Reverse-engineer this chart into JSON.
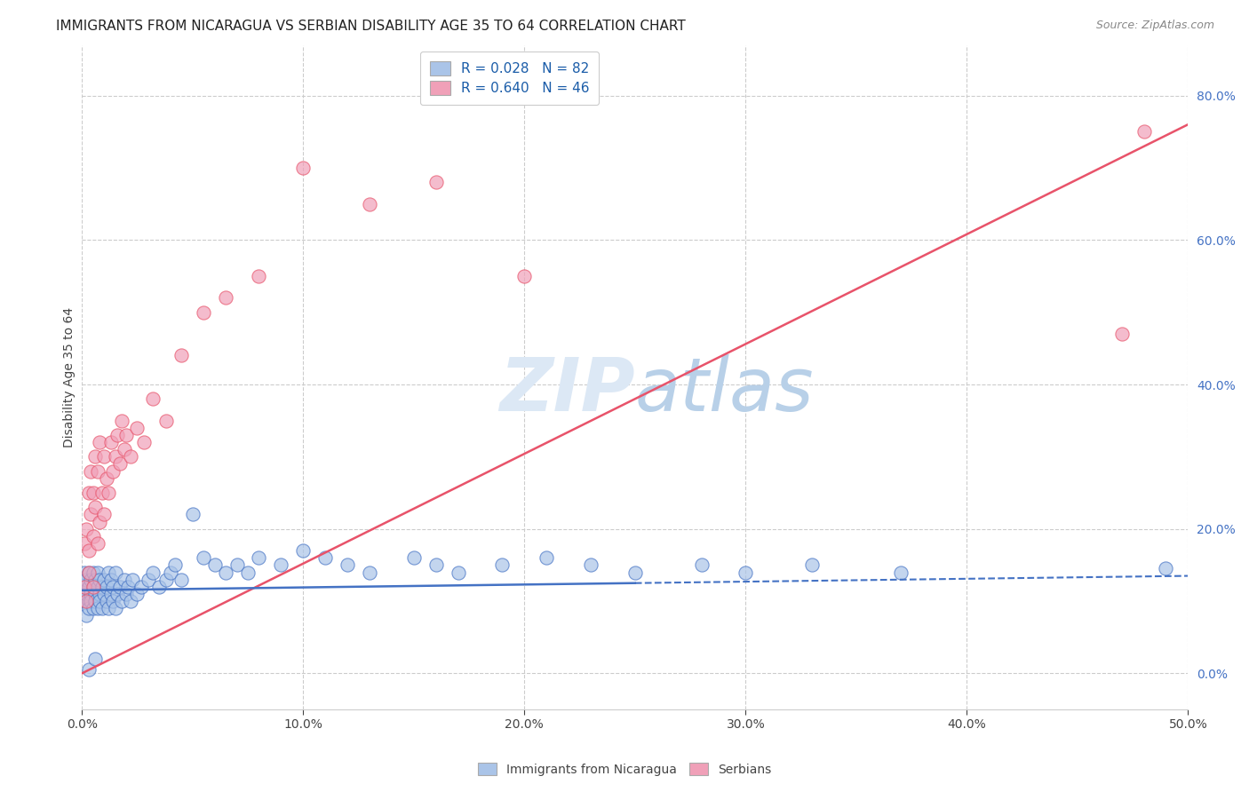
{
  "title": "IMMIGRANTS FROM NICARAGUA VS SERBIAN DISABILITY AGE 35 TO 64 CORRELATION CHART",
  "source": "Source: ZipAtlas.com",
  "ylabel": "Disability Age 35 to 64",
  "xlim": [
    0.0,
    0.5
  ],
  "ylim": [
    -0.05,
    0.87
  ],
  "color_nicaragua": "#aac4e8",
  "color_serbian": "#f0a0b8",
  "line_color_nicaragua": "#4472c4",
  "line_color_serbian": "#e8536a",
  "watermark_color": "#dce8f5",
  "background_color": "#ffffff",
  "grid_color": "#cccccc",
  "title_fontsize": 11,
  "axis_fontsize": 10,
  "legend_fontsize": 11,
  "nicaragua_x": [
    0.0005,
    0.001,
    0.001,
    0.002,
    0.002,
    0.002,
    0.003,
    0.003,
    0.003,
    0.003,
    0.004,
    0.004,
    0.004,
    0.005,
    0.005,
    0.005,
    0.006,
    0.006,
    0.006,
    0.007,
    0.007,
    0.007,
    0.008,
    0.008,
    0.008,
    0.009,
    0.009,
    0.01,
    0.01,
    0.011,
    0.011,
    0.012,
    0.012,
    0.013,
    0.013,
    0.014,
    0.014,
    0.015,
    0.015,
    0.016,
    0.017,
    0.018,
    0.019,
    0.02,
    0.021,
    0.022,
    0.023,
    0.025,
    0.027,
    0.03,
    0.032,
    0.035,
    0.038,
    0.04,
    0.042,
    0.045,
    0.05,
    0.055,
    0.06,
    0.065,
    0.07,
    0.075,
    0.08,
    0.09,
    0.1,
    0.11,
    0.12,
    0.13,
    0.15,
    0.16,
    0.17,
    0.19,
    0.21,
    0.23,
    0.25,
    0.28,
    0.3,
    0.33,
    0.37,
    0.49,
    0.003,
    0.006
  ],
  "nicaragua_y": [
    0.12,
    0.1,
    0.14,
    0.11,
    0.13,
    0.08,
    0.12,
    0.1,
    0.14,
    0.09,
    0.11,
    0.13,
    0.1,
    0.12,
    0.09,
    0.14,
    0.11,
    0.13,
    0.1,
    0.12,
    0.09,
    0.14,
    0.11,
    0.13,
    0.1,
    0.12,
    0.09,
    0.11,
    0.13,
    0.1,
    0.12,
    0.09,
    0.14,
    0.11,
    0.13,
    0.1,
    0.12,
    0.09,
    0.14,
    0.11,
    0.12,
    0.1,
    0.13,
    0.11,
    0.12,
    0.1,
    0.13,
    0.11,
    0.12,
    0.13,
    0.14,
    0.12,
    0.13,
    0.14,
    0.15,
    0.13,
    0.22,
    0.16,
    0.15,
    0.14,
    0.15,
    0.14,
    0.16,
    0.15,
    0.17,
    0.16,
    0.15,
    0.14,
    0.16,
    0.15,
    0.14,
    0.15,
    0.16,
    0.15,
    0.14,
    0.15,
    0.14,
    0.15,
    0.14,
    0.145,
    0.005,
    0.02
  ],
  "serbian_x": [
    0.001,
    0.001,
    0.002,
    0.002,
    0.003,
    0.003,
    0.003,
    0.004,
    0.004,
    0.005,
    0.005,
    0.005,
    0.006,
    0.006,
    0.007,
    0.007,
    0.008,
    0.008,
    0.009,
    0.01,
    0.01,
    0.011,
    0.012,
    0.013,
    0.014,
    0.015,
    0.016,
    0.017,
    0.018,
    0.019,
    0.02,
    0.022,
    0.025,
    0.028,
    0.032,
    0.038,
    0.045,
    0.055,
    0.065,
    0.08,
    0.1,
    0.13,
    0.16,
    0.2,
    0.47,
    0.48
  ],
  "serbian_y": [
    0.12,
    0.18,
    0.1,
    0.2,
    0.14,
    0.25,
    0.17,
    0.22,
    0.28,
    0.19,
    0.25,
    0.12,
    0.3,
    0.23,
    0.18,
    0.28,
    0.21,
    0.32,
    0.25,
    0.22,
    0.3,
    0.27,
    0.25,
    0.32,
    0.28,
    0.3,
    0.33,
    0.29,
    0.35,
    0.31,
    0.33,
    0.3,
    0.34,
    0.32,
    0.38,
    0.35,
    0.44,
    0.5,
    0.52,
    0.55,
    0.7,
    0.65,
    0.68,
    0.55,
    0.47,
    0.75
  ],
  "ser_line_x0": 0.0,
  "ser_line_y0": 0.0,
  "ser_line_x1": 0.5,
  "ser_line_y1": 0.76,
  "nic_line_x0": 0.0,
  "nic_line_y0": 0.115,
  "nic_line_x1": 0.25,
  "nic_line_y1": 0.125,
  "nic_line_dash_x0": 0.25,
  "nic_line_dash_x1": 0.5,
  "nic_line_dash_y0": 0.125,
  "nic_line_dash_y1": 0.135
}
